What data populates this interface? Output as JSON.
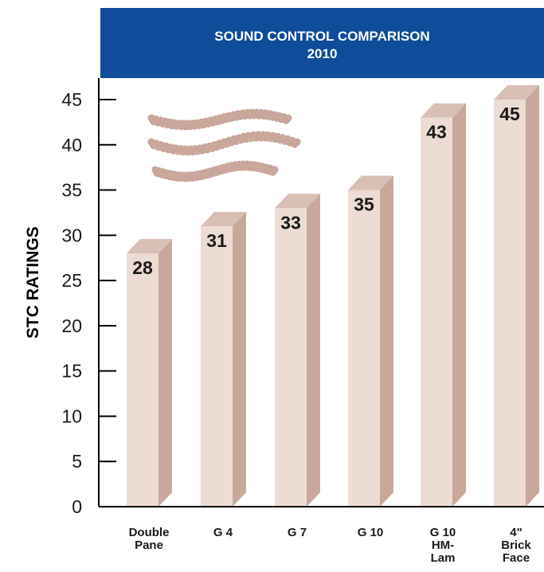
{
  "chart_data": {
    "type": "bar",
    "title": "SOUND CONTROL COMPARISON",
    "subtitle": "2010",
    "ylabel": "STC RATINGS",
    "xlabel": "",
    "ylim": [
      0,
      45
    ],
    "yticks": [
      0,
      5,
      10,
      15,
      20,
      25,
      30,
      35,
      40,
      45
    ],
    "categories": [
      [
        "Double",
        "Pane"
      ],
      [
        "G 4"
      ],
      [
        "G 7"
      ],
      [
        "G 10"
      ],
      [
        "G 10",
        "HM-",
        "Lam"
      ],
      [
        "4\"",
        "Brick",
        "Face"
      ]
    ],
    "values": [
      28,
      31,
      33,
      35,
      43,
      45
    ],
    "value_labels": [
      "28",
      "31",
      "33",
      "35",
      "43",
      "45"
    ],
    "grid": false,
    "style": "3d-bars",
    "colors": {
      "bar_front": "#ecdcd3",
      "bar_side": "#c8a89a",
      "bar_top": "#d9c0b4",
      "title_bg": "#0f4c9a",
      "title_text": "#ffffff",
      "axis": "#000000",
      "sound_waves": "#c9a79b"
    }
  },
  "decoration": {
    "icon": "sound-waves-icon"
  }
}
